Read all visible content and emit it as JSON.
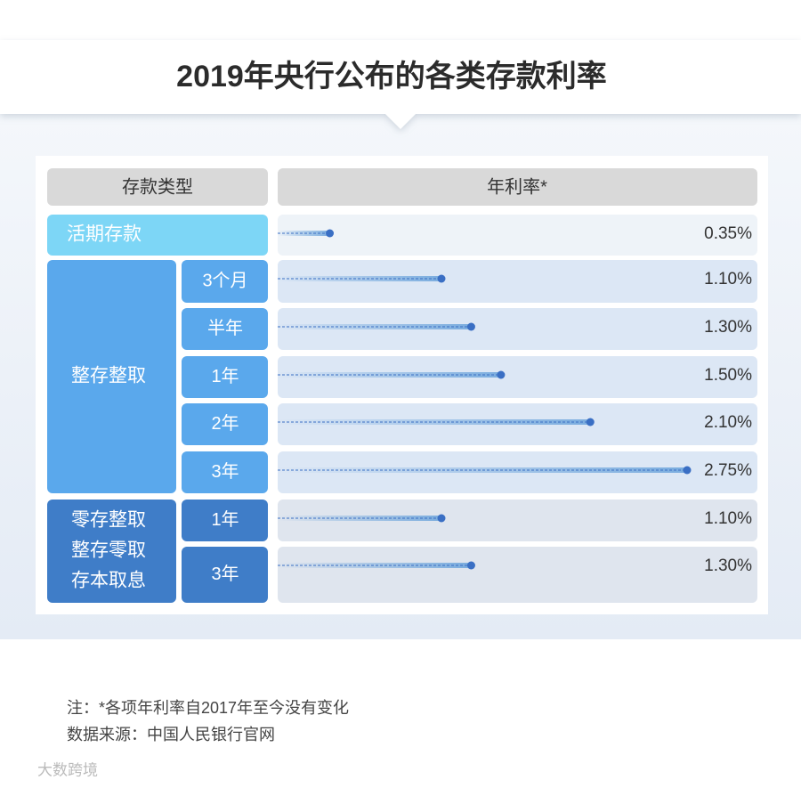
{
  "chart_data": {
    "type": "bar",
    "title": "2019年央行公布的各类存款利率",
    "header": [
      "存款类型",
      "年利率*"
    ],
    "groups": [
      {
        "name": [
          "活期存款"
        ],
        "color": "#7dd6f6",
        "items": [
          {
            "value": 0.35,
            "value_label": "0.35%"
          }
        ]
      },
      {
        "name": [
          "整存整取"
        ],
        "color": "#5aa8ec",
        "items": [
          {
            "label": "3个月",
            "value": 1.1,
            "value_label": "1.10%"
          },
          {
            "label": "半年",
            "value": 1.3,
            "value_label": "1.30%"
          },
          {
            "label": "1年",
            "value": 1.5,
            "value_label": "1.50%"
          },
          {
            "label": "2年",
            "value": 2.1,
            "value_label": "2.10%"
          },
          {
            "label": "3年",
            "value": 2.75,
            "value_label": "2.75%"
          }
        ]
      },
      {
        "name": [
          "零存整取",
          "整存零取",
          "存本取息"
        ],
        "color": "#3f7dc8",
        "items": [
          {
            "label": "1年",
            "value": 1.1,
            "value_label": "1.10%"
          },
          {
            "label": "3年",
            "value": 1.3,
            "value_label": "1.30%"
          }
        ]
      }
    ],
    "notes": [
      "注：*各项年利率自2017年至今没有变化",
      "数据来源：中国人民银行官网"
    ],
    "watermark": "大数跨境"
  }
}
